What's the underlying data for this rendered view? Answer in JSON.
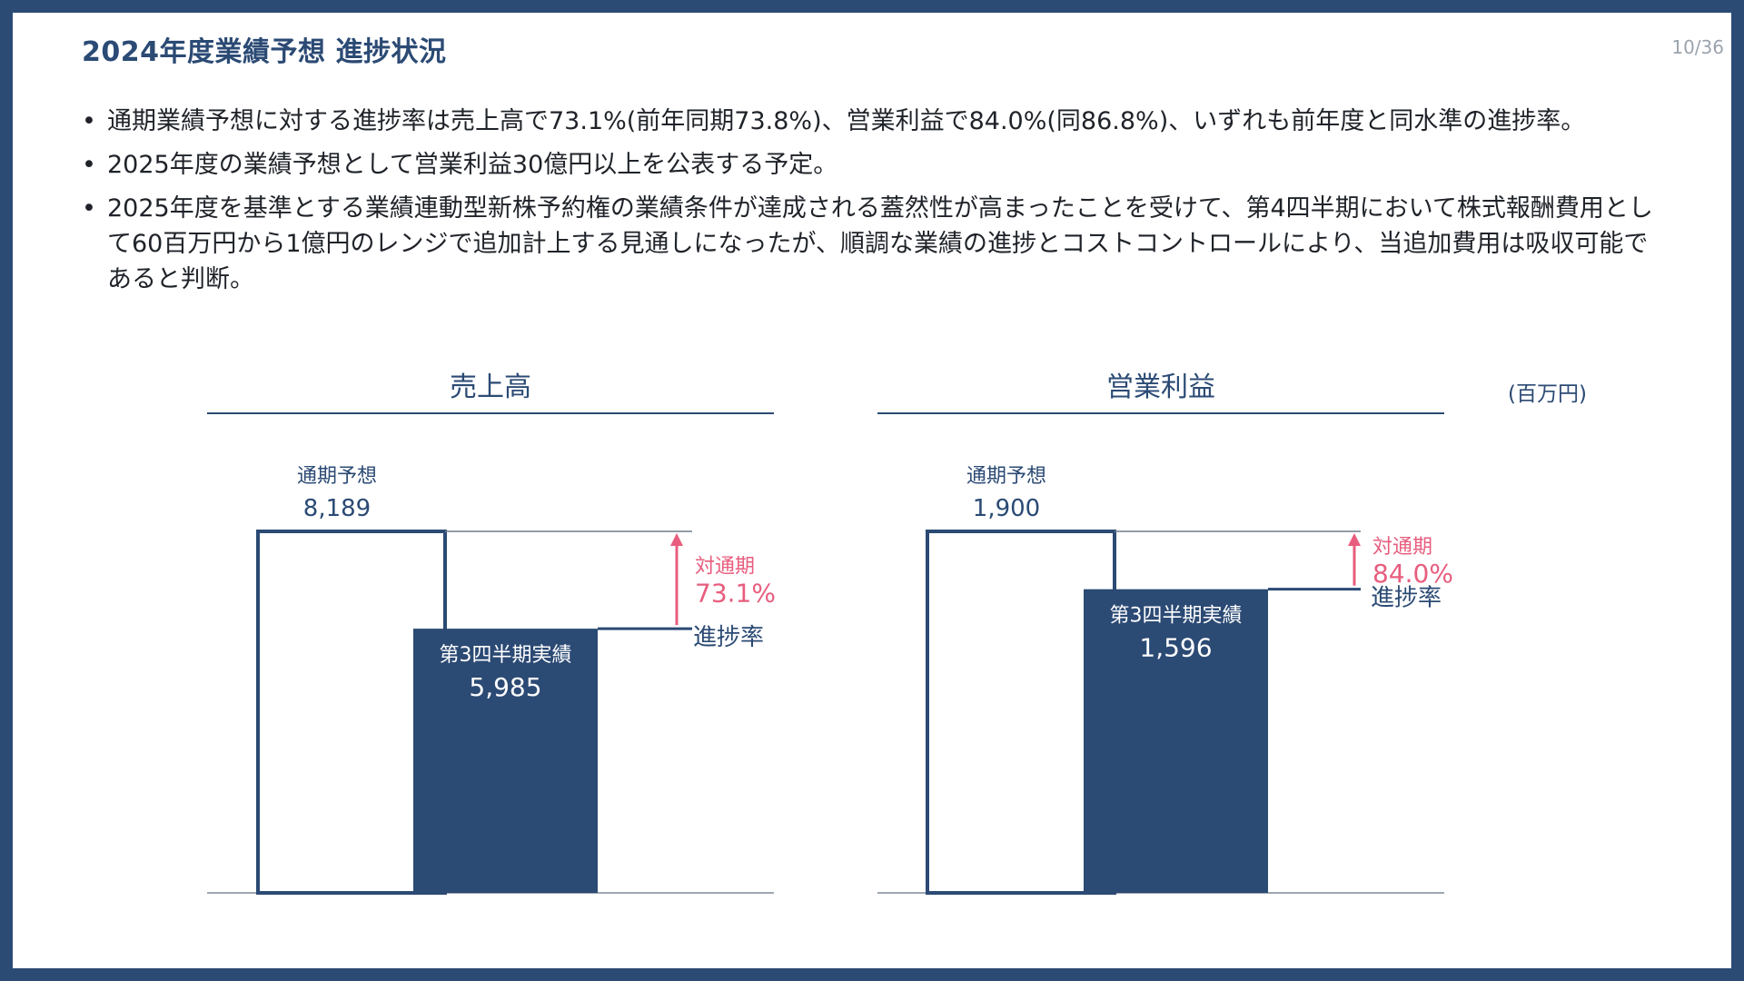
{
  "header": {
    "title": "2024年度業績予想 進捗状況",
    "page_number": "10/36"
  },
  "bullets": [
    "通期業績予想に対する進捗率は売上高で73.1%(前年同期73.8%)、営業利益で84.0%(同86.8%)、いずれも前年度と同水準の進捗率。",
    "2025年度の業績予想として営業利益30億円以上を公表する予定。",
    "2025年度を基準とする業績連動型新株予約権の業績条件が達成される蓋然性が高まったことを受けて、第4四半期において株式報酬費用として60百万円から1億円のレンジで追加計上する見通しになったが、順調な業績の進捗とコストコントロールにより、当追加費用は吸収可能であると判断。"
  ],
  "unit": "(百万円)",
  "colors": {
    "navy": "#2b4a74",
    "accent_pink": "#e85d7e"
  },
  "chart_data": [
    {
      "type": "bar",
      "title": "売上高",
      "categories": [
        "通期予想",
        "第3四半期実績"
      ],
      "values": [
        8189,
        5985
      ],
      "value_labels": [
        "8,189",
        "5,985"
      ],
      "ratio_label_top": "対通期",
      "ratio": "73.1%",
      "ratio_label_bottom": "進捗率",
      "ylim": [
        0,
        8189
      ]
    },
    {
      "type": "bar",
      "title": "営業利益",
      "categories": [
        "通期予想",
        "第3四半期実績"
      ],
      "values": [
        1900,
        1596
      ],
      "value_labels": [
        "1,900",
        "1,596"
      ],
      "ratio_label_top": "対通期",
      "ratio": "84.0%",
      "ratio_label_bottom": "進捗率",
      "ylim": [
        0,
        1900
      ]
    }
  ]
}
